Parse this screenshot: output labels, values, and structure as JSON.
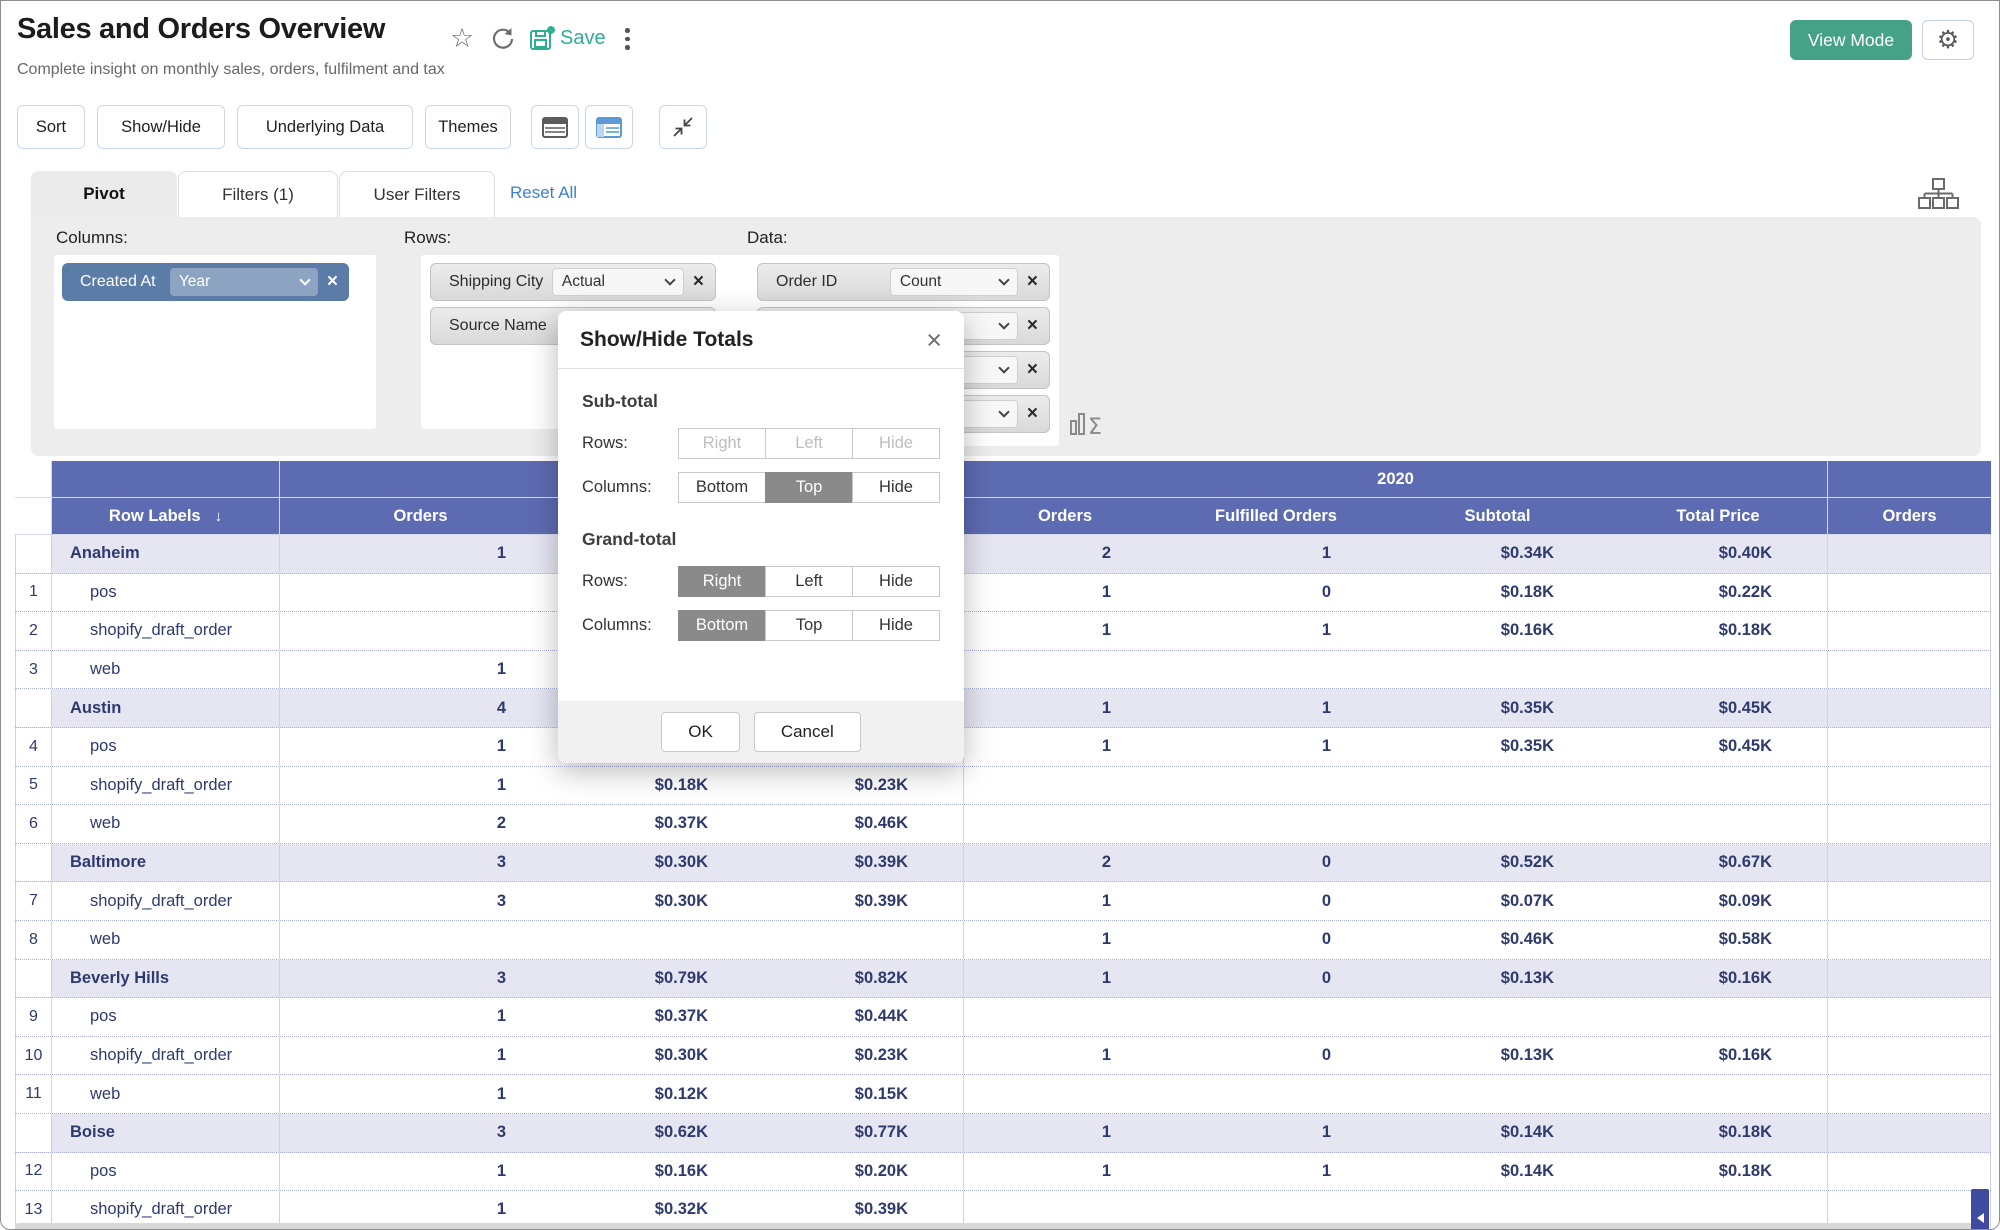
{
  "header": {
    "title": "Sales and Orders Overview",
    "subtitle": "Complete insight on monthly sales, orders, fulfilment and tax",
    "save_label": "Save",
    "view_mode_label": "View Mode"
  },
  "toolbar": {
    "buttons": [
      "Sort",
      "Show/Hide",
      "Underlying Data",
      "Themes"
    ]
  },
  "tabs": {
    "pivot": "Pivot",
    "filters": "Filters  (1)",
    "user_filters": "User Filters",
    "reset_all": "Reset All"
  },
  "pivot_config": {
    "columns_label": "Columns:",
    "rows_label": "Rows:",
    "data_label": "Data:",
    "columns_fields": [
      {
        "name": "Created At",
        "agg": "Year"
      }
    ],
    "rows_fields": [
      {
        "name": "Shipping City",
        "agg": "Actual"
      },
      {
        "name": "Source Name",
        "agg": ""
      }
    ],
    "data_fields": [
      {
        "name": "Order ID",
        "agg": "Count"
      },
      {
        "name": "",
        "agg": ""
      },
      {
        "name": "",
        "agg": ""
      },
      {
        "name": "",
        "agg": ""
      }
    ]
  },
  "modal": {
    "title": "Show/Hide Totals",
    "subtotal_heading": "Sub-total",
    "grandtotal_heading": "Grand-total",
    "rows_label": "Rows:",
    "columns_label": "Columns:",
    "row_options": [
      "Right",
      "Left",
      "Hide"
    ],
    "col_options": [
      "Bottom",
      "Top",
      "Hide"
    ],
    "subtotal": {
      "rows_selected": "",
      "rows_disabled": true,
      "columns_selected": "Top"
    },
    "grandtotal": {
      "rows_selected": "Right",
      "columns_selected": "Bottom"
    },
    "ok_label": "OK",
    "cancel_label": "Cancel"
  },
  "table": {
    "year_band": {
      "group1": "",
      "group2": "2020",
      "group3": ""
    },
    "columns": {
      "row_labels": "Row Labels",
      "g1_orders": "Orders",
      "g1_subtotal": "",
      "g1_total_price": "",
      "g2_orders": "Orders",
      "g2_fulfilled": "Fulfilled Orders",
      "g2_subtotal": "Subtotal",
      "g2_total_price": "Total Price",
      "g3_orders": "Orders"
    },
    "rows": [
      {
        "num": "",
        "label": "Anaheim",
        "group": true,
        "v": [
          "1",
          "",
          "",
          "2",
          "1",
          "$0.34K",
          "$0.40K",
          ""
        ]
      },
      {
        "num": "1",
        "label": "pos",
        "group": false,
        "v": [
          "",
          "",
          "",
          "1",
          "0",
          "$0.18K",
          "$0.22K",
          ""
        ]
      },
      {
        "num": "2",
        "label": "shopify_draft_order",
        "group": false,
        "v": [
          "",
          "",
          "",
          "1",
          "1",
          "$0.16K",
          "$0.18K",
          ""
        ]
      },
      {
        "num": "3",
        "label": "web",
        "group": false,
        "v": [
          "1",
          "",
          "",
          "",
          "",
          "",
          "",
          ""
        ]
      },
      {
        "num": "",
        "label": "Austin",
        "group": true,
        "v": [
          "4",
          "",
          "",
          "1",
          "1",
          "$0.35K",
          "$0.45K",
          ""
        ]
      },
      {
        "num": "4",
        "label": "pos",
        "group": false,
        "v": [
          "1",
          "",
          "",
          "1",
          "1",
          "$0.35K",
          "$0.45K",
          ""
        ]
      },
      {
        "num": "5",
        "label": "shopify_draft_order",
        "group": false,
        "v": [
          "1",
          "$0.18K",
          "$0.23K",
          "",
          "",
          "",
          "",
          ""
        ]
      },
      {
        "num": "6",
        "label": "web",
        "group": false,
        "v": [
          "2",
          "$0.37K",
          "$0.46K",
          "",
          "",
          "",
          "",
          ""
        ]
      },
      {
        "num": "",
        "label": "Baltimore",
        "group": true,
        "v": [
          "3",
          "$0.30K",
          "$0.39K",
          "2",
          "0",
          "$0.52K",
          "$0.67K",
          ""
        ]
      },
      {
        "num": "7",
        "label": "shopify_draft_order",
        "group": false,
        "v": [
          "3",
          "$0.30K",
          "$0.39K",
          "1",
          "0",
          "$0.07K",
          "$0.09K",
          ""
        ]
      },
      {
        "num": "8",
        "label": "web",
        "group": false,
        "v": [
          "",
          "",
          "",
          "1",
          "0",
          "$0.46K",
          "$0.58K",
          ""
        ]
      },
      {
        "num": "",
        "label": "Beverly Hills",
        "group": true,
        "v": [
          "3",
          "$0.79K",
          "$0.82K",
          "1",
          "0",
          "$0.13K",
          "$0.16K",
          ""
        ]
      },
      {
        "num": "9",
        "label": "pos",
        "group": false,
        "v": [
          "1",
          "$0.37K",
          "$0.44K",
          "",
          "",
          "",
          "",
          ""
        ]
      },
      {
        "num": "10",
        "label": "shopify_draft_order",
        "group": false,
        "v": [
          "1",
          "$0.30K",
          "$0.23K",
          "1",
          "0",
          "$0.13K",
          "$0.16K",
          ""
        ]
      },
      {
        "num": "11",
        "label": "web",
        "group": false,
        "v": [
          "1",
          "$0.12K",
          "$0.15K",
          "",
          "",
          "",
          "",
          ""
        ]
      },
      {
        "num": "",
        "label": "Boise",
        "group": true,
        "v": [
          "3",
          "$0.62K",
          "$0.77K",
          "1",
          "1",
          "$0.14K",
          "$0.18K",
          ""
        ]
      },
      {
        "num": "12",
        "label": "pos",
        "group": false,
        "v": [
          "1",
          "$0.16K",
          "$0.20K",
          "1",
          "1",
          "$0.14K",
          "$0.18K",
          ""
        ]
      },
      {
        "num": "13",
        "label": "shopify_draft_order",
        "group": false,
        "v": [
          "1",
          "$0.32K",
          "$0.39K",
          "",
          "",
          "",
          "",
          ""
        ]
      }
    ]
  },
  "colors": {
    "header_bar": "#5d6bb2",
    "group_row": "#e6e6f3",
    "brand_green": "#45a287",
    "link_blue": "#3c80d2",
    "chip_blue": "#5b7ca7",
    "save_teal": "#2fae93",
    "scroll_navy": "#3e4b9e"
  }
}
